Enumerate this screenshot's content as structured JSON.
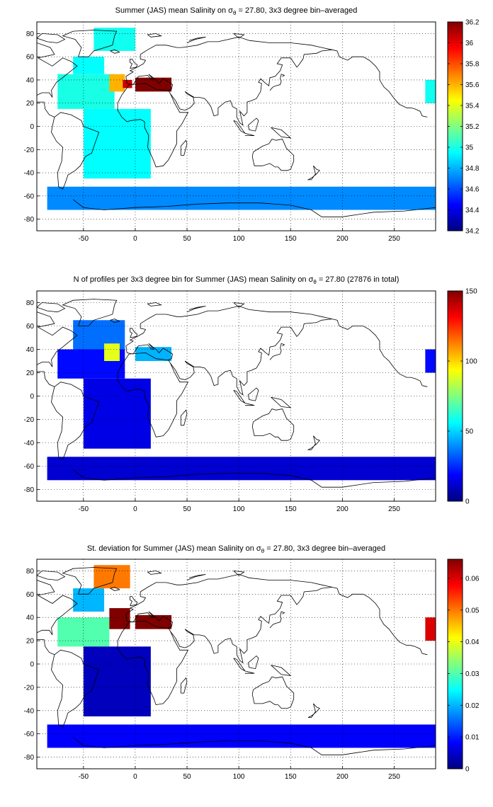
{
  "figure": {
    "background": "#ffffff",
    "map_outline_color": "#000000",
    "grid_color": "#000000",
    "colormap": "jet"
  },
  "chart_data": [
    {
      "type": "heatmap",
      "title_before": "Summer (JAS) mean Salinity on ",
      "title_symbol": "σ",
      "title_subscript": "θ",
      "title_after": " = 27.80, 3x3 degree bin–averaged",
      "xlabel": "",
      "ylabel": "",
      "xlim": [
        -95,
        290
      ],
      "ylim": [
        -90,
        90
      ],
      "xticks": [
        -50,
        0,
        50,
        100,
        150,
        200,
        250
      ],
      "yticks": [
        -80,
        -60,
        -40,
        -20,
        0,
        20,
        40,
        60,
        80
      ],
      "grid": true,
      "grid_style": "dotted",
      "colorbar": {
        "min": 34.2,
        "max": 36.2,
        "ticks": [
          34.2,
          34.4,
          34.6,
          34.8,
          35,
          35.2,
          35.4,
          35.6,
          35.8,
          36,
          36.2
        ],
        "tick_labels": [
          "34.2",
          "34.4",
          "34.6",
          "34.8",
          "35",
          "35.2",
          "35.4",
          "35.6",
          "35.8",
          "36",
          "36.2"
        ]
      },
      "cells": [
        {
          "lon": [
            -40,
            0
          ],
          "lat": [
            65,
            85
          ],
          "value": 34.98
        },
        {
          "lon": [
            -60,
            -30
          ],
          "lat": [
            45,
            60
          ],
          "value": 34.95
        },
        {
          "lon": [
            -75,
            -20
          ],
          "lat": [
            15,
            45
          ],
          "value": 35.0
        },
        {
          "lon": [
            -25,
            -10
          ],
          "lat": [
            30,
            45
          ],
          "value": 35.6
        },
        {
          "lon": [
            -12,
            -3
          ],
          "lat": [
            33,
            40
          ],
          "value": 36.05
        },
        {
          "lon": [
            0,
            35
          ],
          "lat": [
            30,
            42
          ],
          "value": 36.2
        },
        {
          "lon": [
            -50,
            15
          ],
          "lat": [
            -45,
            15
          ],
          "value": 34.95
        },
        {
          "lon": [
            -85,
            295
          ],
          "lat": [
            -72,
            -52
          ],
          "value": 34.72
        },
        {
          "lon": [
            280,
            295
          ],
          "lat": [
            20,
            40
          ],
          "value": 34.98
        }
      ]
    },
    {
      "type": "heatmap",
      "title_before": "N of profiles per 3x3 degree bin for Summer (JAS) mean Salinity on ",
      "title_symbol": "σ",
      "title_subscript": "θ",
      "title_after": " = 27.80 (27876 in total)",
      "xlabel": "",
      "ylabel": "",
      "xlim": [
        -95,
        290
      ],
      "ylim": [
        -90,
        90
      ],
      "xticks": [
        -50,
        0,
        50,
        100,
        150,
        200,
        250
      ],
      "yticks": [
        -80,
        -60,
        -40,
        -20,
        0,
        20,
        40,
        60,
        80
      ],
      "grid": true,
      "grid_style": "dotted",
      "colorbar": {
        "min": 0,
        "max": 150,
        "ticks": [
          0,
          50,
          100,
          150
        ],
        "tick_labels": [
          "0",
          "50",
          "100",
          "150"
        ]
      },
      "cells": [
        {
          "lon": [
            -60,
            -10
          ],
          "lat": [
            40,
            65
          ],
          "value": 35
        },
        {
          "lon": [
            -75,
            -10
          ],
          "lat": [
            15,
            40
          ],
          "value": 20
        },
        {
          "lon": [
            -30,
            -15
          ],
          "lat": [
            30,
            45
          ],
          "value": 90
        },
        {
          "lon": [
            0,
            35
          ],
          "lat": [
            30,
            42
          ],
          "value": 45
        },
        {
          "lon": [
            -50,
            15
          ],
          "lat": [
            -45,
            15
          ],
          "value": 15
        },
        {
          "lon": [
            -85,
            295
          ],
          "lat": [
            -72,
            -52
          ],
          "value": 12
        },
        {
          "lon": [
            280,
            295
          ],
          "lat": [
            20,
            40
          ],
          "value": 20
        }
      ]
    },
    {
      "type": "heatmap",
      "title_before": "St. deviation for Summer (JAS) mean Salinity on ",
      "title_symbol": "σ",
      "title_subscript": "θ",
      "title_after": " = 27.80, 3x3 degree bin–averaged",
      "xlabel": "",
      "ylabel": "",
      "xlim": [
        -95,
        290
      ],
      "ylim": [
        -90,
        90
      ],
      "xticks": [
        -50,
        0,
        50,
        100,
        150,
        200,
        250
      ],
      "yticks": [
        -80,
        -60,
        -40,
        -20,
        0,
        20,
        40,
        60,
        80
      ],
      "grid": true,
      "grid_style": "dotted",
      "colorbar": {
        "min": 0,
        "max": 0.066,
        "ticks": [
          0,
          0.01,
          0.02,
          0.03,
          0.04,
          0.05,
          0.06
        ],
        "tick_labels": [
          "0",
          "0.01",
          "0.02",
          "0.03",
          "0.04",
          "0.05",
          "0.06"
        ]
      },
      "cells": [
        {
          "lon": [
            -40,
            -5
          ],
          "lat": [
            65,
            85
          ],
          "value": 0.05
        },
        {
          "lon": [
            -60,
            -30
          ],
          "lat": [
            45,
            65
          ],
          "value": 0.02
        },
        {
          "lon": [
            -75,
            -25
          ],
          "lat": [
            15,
            40
          ],
          "value": 0.03
        },
        {
          "lon": [
            -25,
            -5
          ],
          "lat": [
            30,
            48
          ],
          "value": 0.066
        },
        {
          "lon": [
            0,
            35
          ],
          "lat": [
            30,
            42
          ],
          "value": 0.066
        },
        {
          "lon": [
            -50,
            15
          ],
          "lat": [
            -45,
            15
          ],
          "value": 0.004
        },
        {
          "lon": [
            -85,
            295
          ],
          "lat": [
            -72,
            -52
          ],
          "value": 0.008
        },
        {
          "lon": [
            280,
            295
          ],
          "lat": [
            20,
            40
          ],
          "value": 0.06
        }
      ]
    }
  ]
}
